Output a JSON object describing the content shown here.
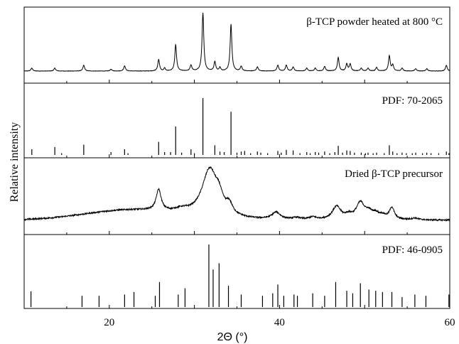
{
  "chart_data": {
    "type": "stacked-xrd",
    "xlabel": "2Θ (°)",
    "ylabel": "Relative intensity",
    "xlim": [
      10,
      60
    ],
    "xticks": [
      20,
      40,
      60
    ],
    "panels": [
      {
        "label": "β-TCP powder heated at 800 °C",
        "kind": "pattern",
        "noise": 0.006,
        "peaks": [
          {
            "x": 10.9,
            "h": 0.05,
            "w": 0.12
          },
          {
            "x": 13.6,
            "h": 0.05,
            "w": 0.12
          },
          {
            "x": 17.0,
            "h": 0.1,
            "w": 0.12
          },
          {
            "x": 20.2,
            "h": 0.03,
            "w": 0.12
          },
          {
            "x": 21.8,
            "h": 0.09,
            "w": 0.12
          },
          {
            "x": 25.8,
            "h": 0.2,
            "w": 0.12
          },
          {
            "x": 26.5,
            "h": 0.05,
            "w": 0.1
          },
          {
            "x": 27.8,
            "h": 0.45,
            "w": 0.12
          },
          {
            "x": 29.6,
            "h": 0.1,
            "w": 0.12
          },
          {
            "x": 31.0,
            "h": 1.0,
            "w": 0.12
          },
          {
            "x": 32.4,
            "h": 0.16,
            "w": 0.12
          },
          {
            "x": 33.0,
            "h": 0.06,
            "w": 0.1
          },
          {
            "x": 34.3,
            "h": 0.8,
            "w": 0.12
          },
          {
            "x": 35.5,
            "h": 0.08,
            "w": 0.12
          },
          {
            "x": 37.4,
            "h": 0.07,
            "w": 0.12
          },
          {
            "x": 39.8,
            "h": 0.1,
            "w": 0.12
          },
          {
            "x": 40.8,
            "h": 0.1,
            "w": 0.12
          },
          {
            "x": 41.6,
            "h": 0.07,
            "w": 0.12
          },
          {
            "x": 43.2,
            "h": 0.05,
            "w": 0.12
          },
          {
            "x": 44.2,
            "h": 0.05,
            "w": 0.12
          },
          {
            "x": 45.3,
            "h": 0.08,
            "w": 0.12
          },
          {
            "x": 46.9,
            "h": 0.23,
            "w": 0.12
          },
          {
            "x": 47.9,
            "h": 0.12,
            "w": 0.12
          },
          {
            "x": 48.3,
            "h": 0.12,
            "w": 0.12
          },
          {
            "x": 49.6,
            "h": 0.05,
            "w": 0.12
          },
          {
            "x": 50.4,
            "h": 0.05,
            "w": 0.12
          },
          {
            "x": 51.4,
            "h": 0.06,
            "w": 0.12
          },
          {
            "x": 52.9,
            "h": 0.26,
            "w": 0.12
          },
          {
            "x": 53.3,
            "h": 0.1,
            "w": 0.12
          },
          {
            "x": 54.4,
            "h": 0.05,
            "w": 0.12
          },
          {
            "x": 56.0,
            "h": 0.04,
            "w": 0.12
          },
          {
            "x": 57.3,
            "h": 0.04,
            "w": 0.12
          },
          {
            "x": 59.6,
            "h": 0.1,
            "w": 0.12
          }
        ]
      },
      {
        "label": "PDF: 70-2065",
        "kind": "sticks",
        "sticks": [
          [
            10.9,
            0.1
          ],
          [
            13.6,
            0.14
          ],
          [
            14.4,
            0.03
          ],
          [
            17.0,
            0.18
          ],
          [
            20.2,
            0.05
          ],
          [
            21.8,
            0.1
          ],
          [
            22.2,
            0.03
          ],
          [
            25.8,
            0.23
          ],
          [
            26.5,
            0.05
          ],
          [
            27.2,
            0.05
          ],
          [
            27.8,
            0.5
          ],
          [
            28.5,
            0.04
          ],
          [
            29.6,
            0.1
          ],
          [
            30.0,
            0.03
          ],
          [
            31.0,
            1.0
          ],
          [
            32.4,
            0.17
          ],
          [
            33.0,
            0.06
          ],
          [
            33.5,
            0.05
          ],
          [
            34.3,
            0.76
          ],
          [
            35.0,
            0.04
          ],
          [
            35.5,
            0.06
          ],
          [
            35.9,
            0.07
          ],
          [
            36.6,
            0.03
          ],
          [
            37.4,
            0.06
          ],
          [
            37.8,
            0.04
          ],
          [
            38.6,
            0.03
          ],
          [
            39.8,
            0.07
          ],
          [
            40.2,
            0.04
          ],
          [
            40.8,
            0.09
          ],
          [
            41.6,
            0.08
          ],
          [
            42.4,
            0.03
          ],
          [
            43.2,
            0.05
          ],
          [
            43.6,
            0.03
          ],
          [
            44.2,
            0.05
          ],
          [
            44.6,
            0.04
          ],
          [
            45.3,
            0.06
          ],
          [
            45.9,
            0.03
          ],
          [
            46.5,
            0.05
          ],
          [
            46.9,
            0.16
          ],
          [
            47.4,
            0.04
          ],
          [
            47.9,
            0.08
          ],
          [
            48.3,
            0.07
          ],
          [
            48.8,
            0.04
          ],
          [
            49.6,
            0.04
          ],
          [
            50.1,
            0.03
          ],
          [
            50.4,
            0.04
          ],
          [
            51.0,
            0.03
          ],
          [
            51.4,
            0.04
          ],
          [
            52.3,
            0.03
          ],
          [
            52.9,
            0.17
          ],
          [
            53.3,
            0.06
          ],
          [
            53.8,
            0.03
          ],
          [
            54.4,
            0.04
          ],
          [
            54.9,
            0.03
          ],
          [
            55.6,
            0.03
          ],
          [
            56.0,
            0.04
          ],
          [
            56.8,
            0.03
          ],
          [
            57.3,
            0.04
          ],
          [
            57.8,
            0.03
          ],
          [
            58.7,
            0.03
          ],
          [
            59.6,
            0.06
          ],
          [
            59.9,
            0.03
          ]
        ]
      },
      {
        "label": "Dried β-TCP precursor",
        "kind": "pattern",
        "noise": 0.025,
        "baseline": [
          {
            "x": 22.5,
            "h": 0.17,
            "w": 5.5
          }
        ],
        "peaks": [
          {
            "x": 25.8,
            "h": 0.36,
            "w": 0.35
          },
          {
            "x": 28.5,
            "h": 0.06,
            "w": 1.0
          },
          {
            "x": 31.8,
            "h": 0.82,
            "w": 1.1
          },
          {
            "x": 32.9,
            "h": 0.2,
            "w": 0.5
          },
          {
            "x": 34.1,
            "h": 0.16,
            "w": 0.45
          },
          {
            "x": 39.6,
            "h": 0.12,
            "w": 0.6
          },
          {
            "x": 42.0,
            "h": 0.03,
            "w": 0.5
          },
          {
            "x": 43.9,
            "h": 0.04,
            "w": 0.5
          },
          {
            "x": 46.7,
            "h": 0.22,
            "w": 0.6
          },
          {
            "x": 48.1,
            "h": 0.06,
            "w": 0.5
          },
          {
            "x": 49.5,
            "h": 0.28,
            "w": 0.6
          },
          {
            "x": 50.5,
            "h": 0.1,
            "w": 0.5
          },
          {
            "x": 51.3,
            "h": 0.08,
            "w": 0.5
          },
          {
            "x": 52.1,
            "h": 0.06,
            "w": 0.5
          },
          {
            "x": 53.2,
            "h": 0.2,
            "w": 0.35
          },
          {
            "x": 55.9,
            "h": 0.03,
            "w": 0.5
          }
        ]
      },
      {
        "label": "PDF: 46-0905",
        "kind": "sticks",
        "sticks": [
          [
            10.8,
            0.25
          ],
          [
            16.8,
            0.18
          ],
          [
            18.8,
            0.18
          ],
          [
            21.8,
            0.2
          ],
          [
            22.9,
            0.24
          ],
          [
            25.4,
            0.18
          ],
          [
            25.9,
            0.4
          ],
          [
            28.1,
            0.2
          ],
          [
            28.9,
            0.3
          ],
          [
            31.7,
            1.0
          ],
          [
            32.2,
            0.6
          ],
          [
            32.9,
            0.7
          ],
          [
            34.0,
            0.34
          ],
          [
            35.5,
            0.2
          ],
          [
            38.0,
            0.18
          ],
          [
            39.2,
            0.22
          ],
          [
            39.8,
            0.36
          ],
          [
            40.5,
            0.18
          ],
          [
            41.7,
            0.2
          ],
          [
            42.1,
            0.18
          ],
          [
            43.9,
            0.22
          ],
          [
            45.3,
            0.18
          ],
          [
            46.6,
            0.4
          ],
          [
            47.9,
            0.26
          ],
          [
            48.6,
            0.22
          ],
          [
            49.5,
            0.38
          ],
          [
            50.5,
            0.28
          ],
          [
            51.3,
            0.26
          ],
          [
            52.1,
            0.24
          ],
          [
            53.2,
            0.24
          ],
          [
            54.4,
            0.16
          ],
          [
            55.9,
            0.2
          ],
          [
            57.2,
            0.18
          ],
          [
            59.9,
            0.2
          ]
        ]
      }
    ]
  }
}
